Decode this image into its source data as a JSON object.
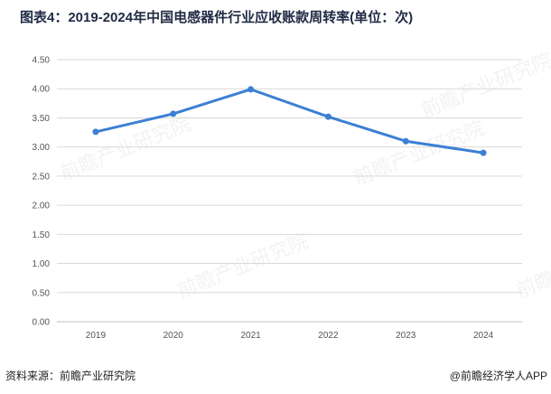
{
  "title": "图表4：2019-2024年中国电感器件行业应收账款周转率(单位：次)",
  "source": "资料来源：前瞻产业研究院",
  "credit": "@前瞻经济学人APP",
  "watermark": "前瞻产业研究院",
  "colors": {
    "line": "#3c7fd4",
    "grid": "#d9d9d9",
    "axis": "#bfbfbf",
    "title": "#1f2a44"
  },
  "chart_data": {
    "type": "line",
    "title": "图表4：2019-2024年中国电感器件行业应收账款周转率(单位：次)",
    "xlabel": "",
    "ylabel": "",
    "categories": [
      "2019",
      "2020",
      "2021",
      "2022",
      "2023",
      "2024"
    ],
    "series": [
      {
        "values": [
          3.26,
          3.57,
          3.99,
          3.52,
          3.1,
          2.9
        ]
      }
    ],
    "ylim": [
      0,
      4.5
    ],
    "yticks": [
      "0.00",
      "0.50",
      "1.00",
      "1.50",
      "2.00",
      "2.50",
      "3.00",
      "3.50",
      "4.00",
      "4.50"
    ],
    "grid": true,
    "legend": "none"
  }
}
